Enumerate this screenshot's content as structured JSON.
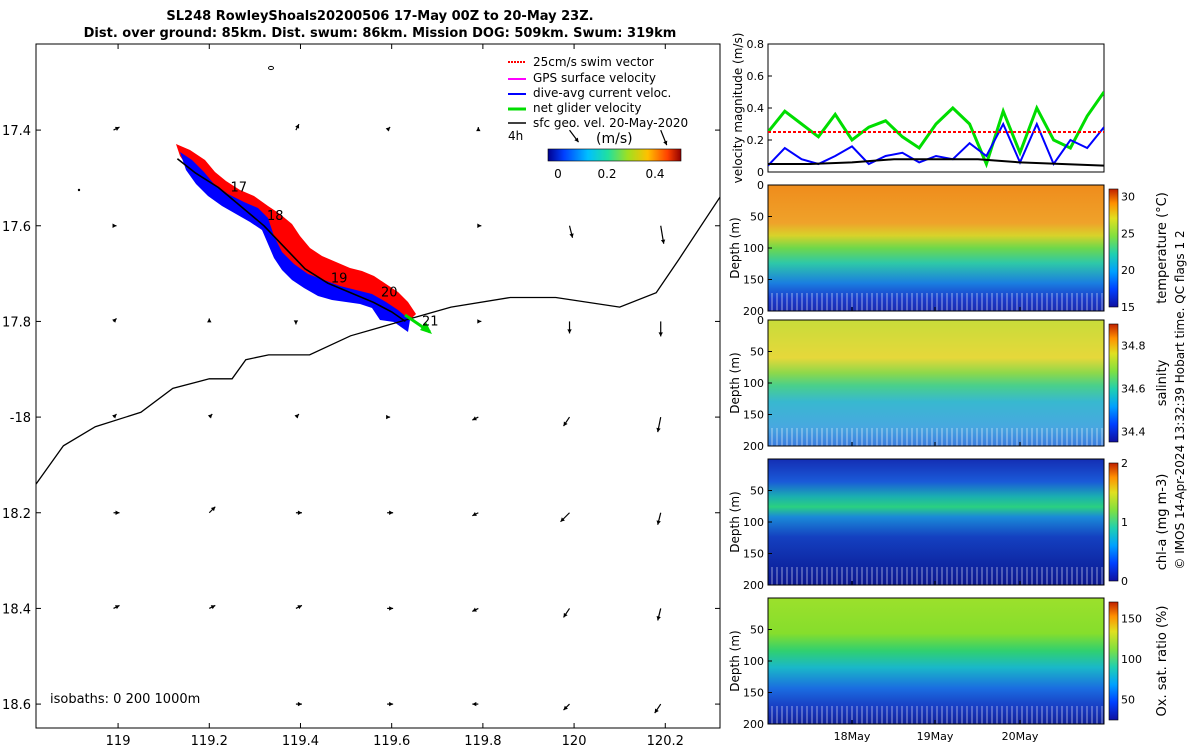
{
  "header": {
    "title_line1": "SL248 RowleyShoals20200506 17-May 00Z to 20-May 23Z.",
    "title_line2": "Dist. over ground: 85km. Dist. swum: 86km. Mission DOG: 509km. Swum: 319km"
  },
  "credit": "© IMOS 14-Apr-2024 13:32:39 Hobart time. QC flags 1  2",
  "colors": {
    "swim": "#ff0000",
    "gps": "#ff00ff",
    "dive": "#0000ff",
    "net": "#00dd00",
    "sfc": "#000000"
  },
  "chart_data": [
    {
      "type": "map",
      "name": "glider-track-map",
      "xlim": [
        118.82,
        120.32
      ],
      "ylim": [
        -18.65,
        -17.22
      ],
      "xticks": [
        119,
        119.2,
        119.4,
        119.6,
        119.8,
        120,
        120.2
      ],
      "xtick_labels": [
        "119",
        "119.2",
        "119.4",
        "119.6",
        "119.8",
        "120",
        "120.2"
      ],
      "yticks": [
        -17.4,
        -17.6,
        -17.8,
        -18,
        -18.2,
        -18.4,
        -18.6
      ],
      "ytick_labels": [
        "17.4",
        "17.6",
        "17.8",
        "-18",
        "18.2",
        "18.4",
        "18.6"
      ],
      "legend": [
        {
          "label": "25cm/s swim vector",
          "color": "#ff0000"
        },
        {
          "label": "GPS surface velocity",
          "color": "#ff00ff"
        },
        {
          "label": "dive-avg current veloc.",
          "color": "#0000ff"
        },
        {
          "label": "net glider velocity",
          "color": "#00dd00"
        },
        {
          "label": "sfc geo. vel. 20-May-2020",
          "color": "#000000"
        }
      ],
      "legend_note": "4h",
      "colorbar": {
        "label": "(m/s)",
        "ticks": [
          "0",
          "0.2",
          "0.4"
        ],
        "range": [
          0,
          0.5
        ]
      },
      "isobaths_label": "isobaths: 0   200  1000m",
      "track": [
        [
          119.13,
          -17.46
        ],
        [
          119.17,
          -17.49
        ],
        [
          119.22,
          -17.52
        ],
        [
          119.27,
          -17.56
        ],
        [
          119.32,
          -17.6
        ],
        [
          119.36,
          -17.64
        ],
        [
          119.41,
          -17.69
        ],
        [
          119.46,
          -17.72
        ],
        [
          119.51,
          -17.74
        ],
        [
          119.56,
          -17.76
        ],
        [
          119.6,
          -17.78
        ],
        [
          119.63,
          -17.8
        ]
      ],
      "day_labels": [
        {
          "text": "17",
          "lon": 119.24,
          "lat": -17.52
        },
        {
          "text": "18",
          "lon": 119.32,
          "lat": -17.58
        },
        {
          "text": "19",
          "lon": 119.46,
          "lat": -17.71
        },
        {
          "text": "20",
          "lon": 119.57,
          "lat": -17.74
        },
        {
          "text": "21",
          "lon": 119.66,
          "lat": -17.8
        }
      ],
      "isobath_line": [
        [
          118.82,
          -18.14
        ],
        [
          118.88,
          -18.06
        ],
        [
          118.95,
          -18.02
        ],
        [
          119.05,
          -17.99
        ],
        [
          119.12,
          -17.94
        ],
        [
          119.2,
          -17.92
        ],
        [
          119.25,
          -17.92
        ],
        [
          119.28,
          -17.88
        ],
        [
          119.33,
          -17.87
        ],
        [
          119.42,
          -17.87
        ],
        [
          119.51,
          -17.83
        ],
        [
          119.62,
          -17.8
        ],
        [
          119.73,
          -17.77
        ],
        [
          119.86,
          -17.75
        ],
        [
          119.96,
          -17.75
        ],
        [
          120.1,
          -17.77
        ],
        [
          120.18,
          -17.74
        ],
        [
          120.23,
          -17.67
        ],
        [
          120.32,
          -17.54
        ]
      ],
      "vectors": [
        {
          "lon": 118.99,
          "lat": -17.4,
          "u": 0.02,
          "v": 0.01
        },
        {
          "lon": 119.2,
          "lat": -17.4,
          "u": 0,
          "v": 0
        },
        {
          "lon": 119.39,
          "lat": -17.4,
          "u": 0.01,
          "v": 0.02
        },
        {
          "lon": 119.59,
          "lat": -17.4,
          "u": 0.01,
          "v": 0.01
        },
        {
          "lon": 119.79,
          "lat": -17.4,
          "u": 0,
          "v": 0.01
        },
        {
          "lon": 119.99,
          "lat": -17.4,
          "u": 0.03,
          "v": -0.04
        },
        {
          "lon": 120.19,
          "lat": -17.4,
          "u": 0.02,
          "v": -0.05
        },
        {
          "lon": 118.99,
          "lat": -17.6,
          "u": 0.01,
          "v": 0
        },
        {
          "lon": 119.2,
          "lat": -17.6,
          "u": 0,
          "v": 0
        },
        {
          "lon": 119.59,
          "lat": -17.6,
          "u": 0,
          "v": 0
        },
        {
          "lon": 119.79,
          "lat": -17.6,
          "u": 0.01,
          "v": 0
        },
        {
          "lon": 119.99,
          "lat": -17.6,
          "u": 0.01,
          "v": -0.04
        },
        {
          "lon": 120.19,
          "lat": -17.6,
          "u": 0.01,
          "v": -0.06
        },
        {
          "lon": 118.99,
          "lat": -17.8,
          "u": 0.01,
          "v": 0.01
        },
        {
          "lon": 119.2,
          "lat": -17.8,
          "u": 0,
          "v": 0.01
        },
        {
          "lon": 119.39,
          "lat": -17.8,
          "u": 0,
          "v": -0.01
        },
        {
          "lon": 119.79,
          "lat": -17.8,
          "u": 0.01,
          "v": 0
        },
        {
          "lon": 119.99,
          "lat": -17.8,
          "u": 0,
          "v": -0.04
        },
        {
          "lon": 120.19,
          "lat": -17.8,
          "u": 0,
          "v": -0.05
        },
        {
          "lon": 118.99,
          "lat": -18,
          "u": 0.01,
          "v": 0.01
        },
        {
          "lon": 119.2,
          "lat": -18,
          "u": 0.01,
          "v": 0.01
        },
        {
          "lon": 119.39,
          "lat": -18,
          "u": 0.01,
          "v": 0.01
        },
        {
          "lon": 119.59,
          "lat": -18,
          "u": 0.01,
          "v": 0
        },
        {
          "lon": 119.79,
          "lat": -18,
          "u": -0.02,
          "v": -0.01
        },
        {
          "lon": 119.99,
          "lat": -18,
          "u": -0.02,
          "v": -0.03
        },
        {
          "lon": 120.19,
          "lat": -18,
          "u": -0.01,
          "v": -0.05
        },
        {
          "lon": 118.99,
          "lat": -18.2,
          "u": 0.02,
          "v": 0
        },
        {
          "lon": 119.2,
          "lat": -18.2,
          "u": 0.02,
          "v": 0.02
        },
        {
          "lon": 119.39,
          "lat": -18.2,
          "u": 0.02,
          "v": 0
        },
        {
          "lon": 119.59,
          "lat": -18.2,
          "u": 0.02,
          "v": 0
        },
        {
          "lon": 119.79,
          "lat": -18.2,
          "u": -0.02,
          "v": -0.01
        },
        {
          "lon": 119.99,
          "lat": -18.2,
          "u": -0.03,
          "v": -0.03
        },
        {
          "lon": 120.19,
          "lat": -18.2,
          "u": -0.01,
          "v": -0.04
        },
        {
          "lon": 118.99,
          "lat": -18.4,
          "u": 0.02,
          "v": 0.01
        },
        {
          "lon": 119.2,
          "lat": -18.4,
          "u": 0.02,
          "v": 0.01
        },
        {
          "lon": 119.39,
          "lat": -18.4,
          "u": 0.02,
          "v": 0.01
        },
        {
          "lon": 119.59,
          "lat": -18.4,
          "u": 0.02,
          "v": 0
        },
        {
          "lon": 119.79,
          "lat": -18.4,
          "u": -0.02,
          "v": -0.01
        },
        {
          "lon": 119.99,
          "lat": -18.4,
          "u": -0.02,
          "v": -0.03
        },
        {
          "lon": 120.19,
          "lat": -18.4,
          "u": -0.01,
          "v": -0.04
        },
        {
          "lon": 119.39,
          "lat": -18.6,
          "u": 0.02,
          "v": 0
        },
        {
          "lon": 119.59,
          "lat": -18.6,
          "u": 0.02,
          "v": 0
        },
        {
          "lon": 119.79,
          "lat": -18.6,
          "u": -0.02,
          "v": 0
        },
        {
          "lon": 119.99,
          "lat": -18.6,
          "u": -0.02,
          "v": -0.02
        },
        {
          "lon": 120.19,
          "lat": -18.6,
          "u": -0.02,
          "v": -0.03
        }
      ]
    },
    {
      "type": "line",
      "name": "velocity-panel",
      "ylabel": "velocity magnitude (m/s)",
      "ylim": [
        0,
        0.8
      ],
      "yticks": [
        0,
        0.2,
        0.4,
        0.6,
        0.8
      ],
      "xlim": [
        0,
        4
      ],
      "series": [
        {
          "name": "net glider velocity",
          "color": "#00dd00",
          "x": [
            0,
            0.2,
            0.4,
            0.6,
            0.8,
            1,
            1.2,
            1.4,
            1.6,
            1.8,
            2,
            2.2,
            2.4,
            2.6,
            2.8,
            3,
            3.2,
            3.4,
            3.6,
            3.8,
            4
          ],
          "values": [
            0.25,
            0.38,
            0.3,
            0.22,
            0.36,
            0.2,
            0.28,
            0.32,
            0.22,
            0.15,
            0.3,
            0.4,
            0.3,
            0.05,
            0.38,
            0.12,
            0.4,
            0.2,
            0.15,
            0.35,
            0.5
          ]
        },
        {
          "name": "dive-avg current veloc.",
          "color": "#0000ff",
          "x": [
            0,
            0.2,
            0.4,
            0.6,
            0.8,
            1,
            1.2,
            1.4,
            1.6,
            1.8,
            2,
            2.2,
            2.4,
            2.6,
            2.8,
            3,
            3.2,
            3.4,
            3.6,
            3.8,
            4
          ],
          "values": [
            0.04,
            0.15,
            0.08,
            0.05,
            0.1,
            0.16,
            0.05,
            0.1,
            0.12,
            0.06,
            0.1,
            0.08,
            0.18,
            0.1,
            0.3,
            0.06,
            0.3,
            0.05,
            0.2,
            0.15,
            0.28
          ]
        },
        {
          "name": "25cm/s swim vector",
          "color": "#ff0000",
          "x": [
            0,
            4
          ],
          "values": [
            0.25,
            0.25
          ]
        },
        {
          "name": "sfc geo. vel.",
          "color": "#000000",
          "x": [
            0,
            0.5,
            1,
            1.5,
            2,
            2.5,
            3,
            3.5,
            4
          ],
          "values": [
            0.05,
            0.05,
            0.06,
            0.08,
            0.08,
            0.08,
            0.06,
            0.05,
            0.04
          ]
        }
      ]
    },
    {
      "type": "heatmap",
      "name": "temperature-section",
      "ylabel": "Depth (m)",
      "yticks": [
        0,
        50,
        100,
        150,
        200
      ],
      "clabel": "temperature (°C)",
      "cticks": [
        "15",
        "20",
        "25",
        "30"
      ],
      "clim": [
        15,
        31
      ],
      "surface_value": 28,
      "deep_value": 15,
      "xtick_labels": [
        "18May",
        "19May",
        "20May"
      ]
    },
    {
      "type": "heatmap",
      "name": "salinity-section",
      "ylabel": "Depth (m)",
      "yticks": [
        0,
        50,
        100,
        150,
        200
      ],
      "clabel": "salinity",
      "cticks": [
        "34.4",
        "34.6",
        "34.8"
      ],
      "clim": [
        34.35,
        34.9
      ],
      "surface_value": 34.75,
      "deep_value": 34.5,
      "xtick_labels": [
        "18May",
        "19May",
        "20May"
      ]
    },
    {
      "type": "heatmap",
      "name": "chla-section",
      "ylabel": "Depth (m)",
      "yticks": [
        50,
        100,
        150,
        200
      ],
      "clabel": "chl-a (mg m-3)",
      "cticks": [
        "0",
        "1",
        "2"
      ],
      "clim": [
        0,
        2
      ],
      "surface_value": 0.3,
      "deep_value": 0.1,
      "xtick_labels": [
        "18May",
        "19May",
        "20May"
      ]
    },
    {
      "type": "heatmap",
      "name": "oxygen-section",
      "ylabel": "Depth (m)",
      "yticks": [
        50,
        100,
        150,
        200
      ],
      "clabel": "Ox. sat. ratio (%)",
      "cticks": [
        "50",
        "100",
        "150"
      ],
      "clim": [
        25,
        170
      ],
      "surface_value": 105,
      "deep_value": 40,
      "xtick_labels": [
        "18May",
        "19May",
        "20May"
      ]
    }
  ]
}
